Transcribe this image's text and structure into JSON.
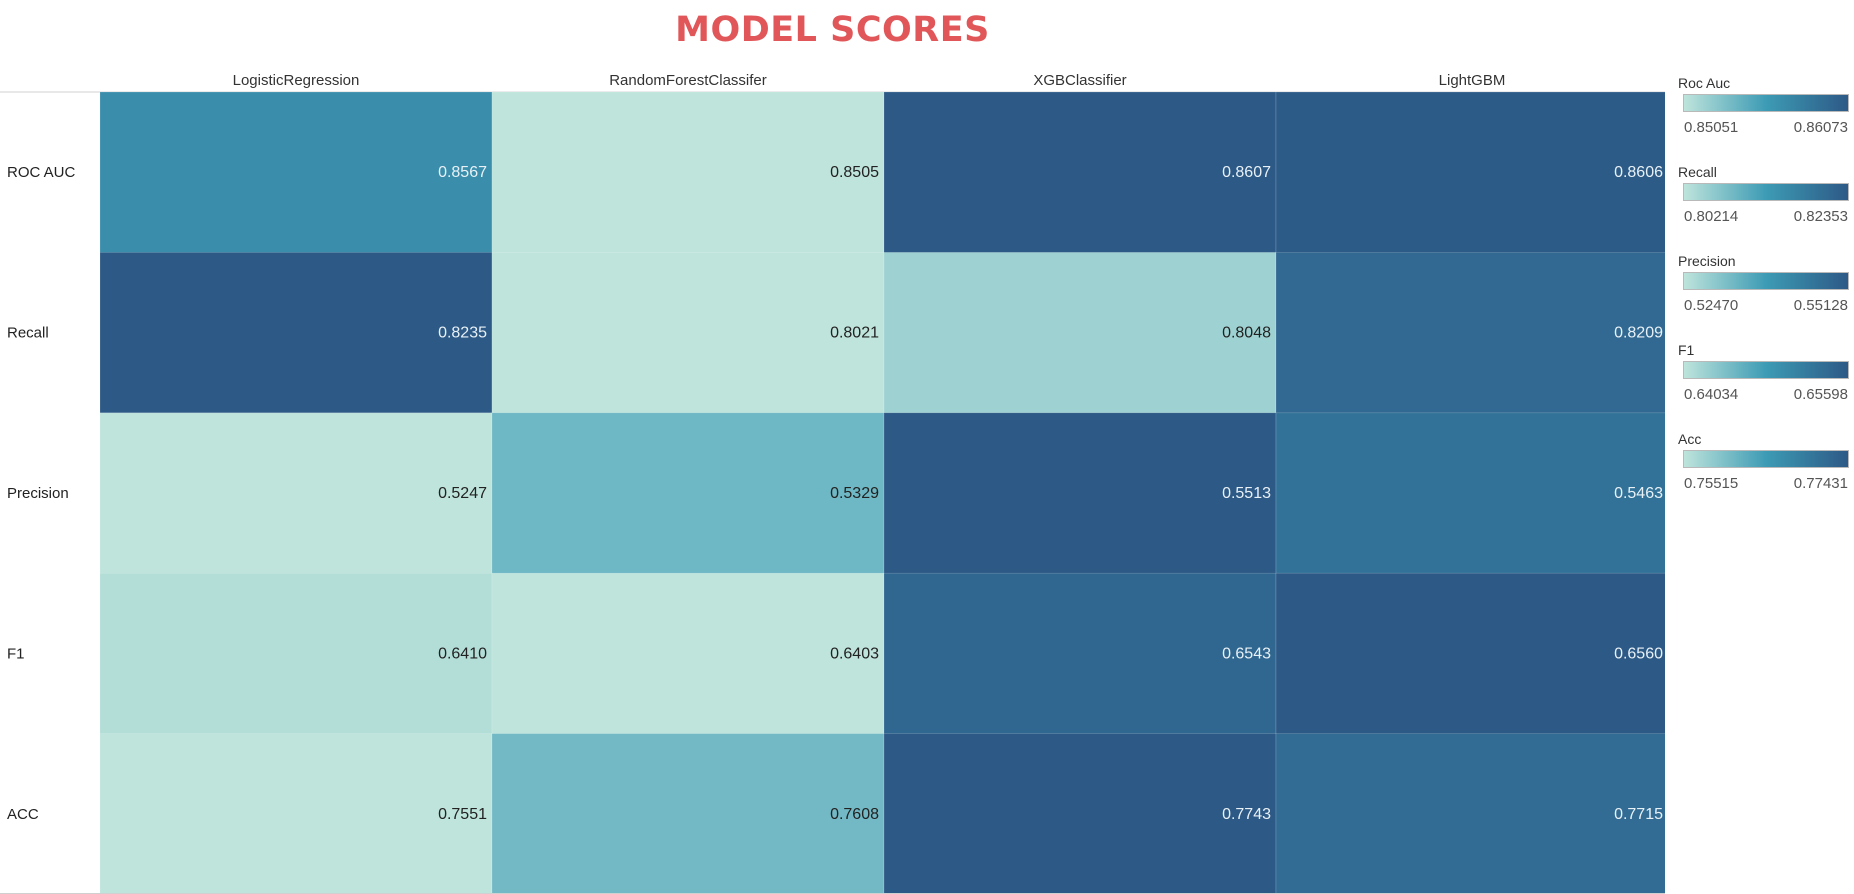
{
  "chart_data": {
    "type": "heatmap",
    "title": "MODEL SCORES",
    "columns": [
      "LogisticRegression",
      "RandomForestClassifer",
      "XGBClassifier",
      "LightGBM"
    ],
    "rows": [
      "ROC AUC",
      "Recall",
      "Precision",
      "F1",
      "ACC"
    ],
    "values": [
      [
        "0.8567",
        "0.8505",
        "0.8607",
        "0.8606"
      ],
      [
        "0.8235",
        "0.8021",
        "0.8048",
        "0.8209"
      ],
      [
        "0.5247",
        "0.5329",
        "0.5513",
        "0.5463"
      ],
      [
        "0.6410",
        "0.6403",
        "0.6543",
        "0.6560"
      ],
      [
        "0.7551",
        "0.7608",
        "0.7743",
        "0.7715"
      ]
    ],
    "color_scale": {
      "low": "#bee4db",
      "mid": "#3d9bb5",
      "high": "#2d5986",
      "dark_text": "#222222",
      "light_text": "#e8f1f6"
    },
    "legends": [
      {
        "title": "Roc Auc",
        "min": "0.85051",
        "max": "0.86073"
      },
      {
        "title": "Recall",
        "min": "0.80214",
        "max": "0.82353"
      },
      {
        "title": "Precision",
        "min": "0.52470",
        "max": "0.55128"
      },
      {
        "title": "F1",
        "min": "0.64034",
        "max": "0.65598"
      },
      {
        "title": "Acc",
        "min": "0.75515",
        "max": "0.77431"
      }
    ]
  }
}
